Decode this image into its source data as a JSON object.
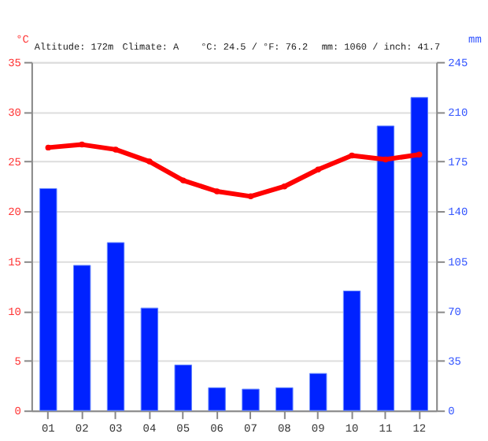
{
  "chart_data": {
    "type": "bar",
    "categories": [
      "01",
      "02",
      "03",
      "04",
      "05",
      "06",
      "07",
      "08",
      "09",
      "10",
      "11",
      "12"
    ],
    "series": [
      {
        "name": null,
        "axis": "y2",
        "color": "#0022ff",
        "values": [
          156,
          102,
          118,
          72,
          32,
          16,
          15,
          16,
          26,
          84,
          200,
          220
        ]
      },
      {
        "name": null,
        "type": "line",
        "axis": "y",
        "color": "#ff0000",
        "marker": "circle",
        "line_style": "solid",
        "values": [
          26.4,
          26.7,
          26.2,
          25.0,
          23.1,
          22.0,
          21.5,
          22.5,
          24.2,
          25.6,
          25.2,
          25.7
        ]
      }
    ],
    "ylabel": "°C",
    "y2label": "mm",
    "ylim": [
      0,
      35
    ],
    "yticks": [
      0,
      5,
      10,
      15,
      20,
      25,
      30,
      35
    ],
    "y2lim": [
      0,
      245
    ],
    "y2ticks": [
      0,
      35,
      70,
      105,
      140,
      175,
      210,
      245
    ],
    "grid": "y",
    "annotations": [
      "Altitude: 172m",
      "Climate: A",
      "°C: 24.5 / °F: 76.2",
      "mm: 1060 / inch: 41.7"
    ]
  }
}
